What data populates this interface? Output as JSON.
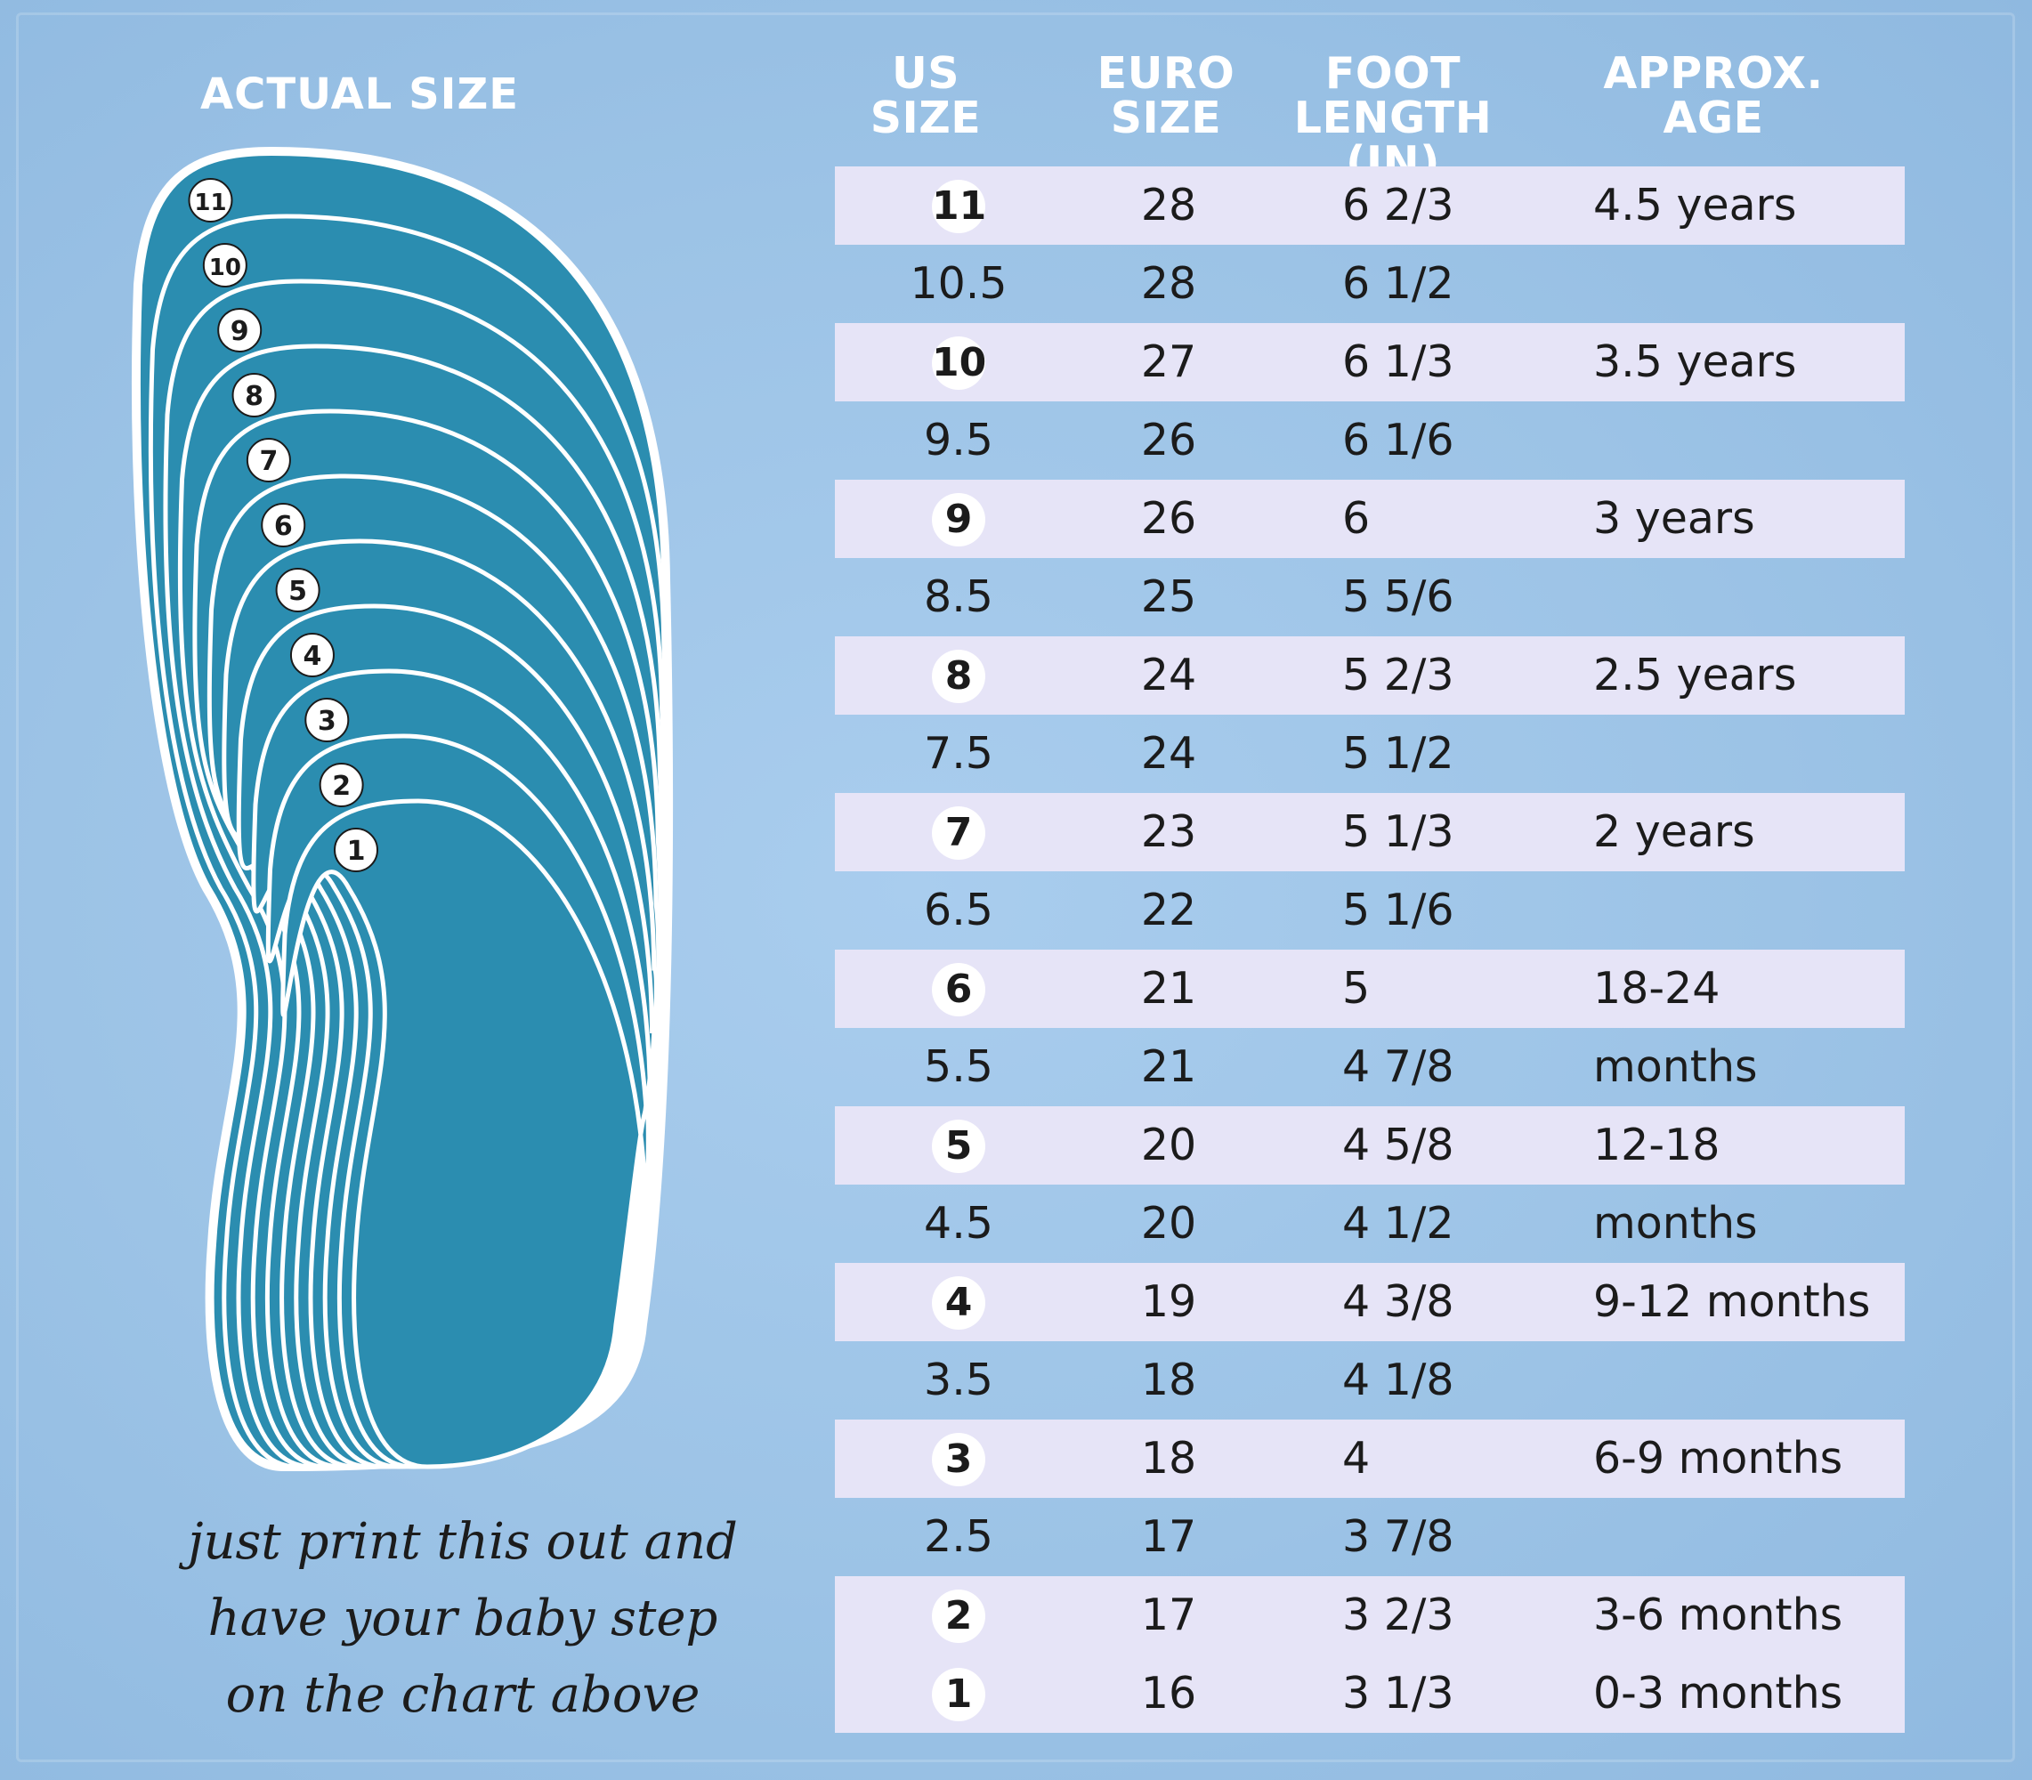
{
  "left_panel": {
    "actual_size_label": "ACTUAL SIZE",
    "foot_outline_numbers": [
      "11",
      "10",
      "9",
      "8",
      "7",
      "6",
      "5",
      "4",
      "3",
      "2",
      "1"
    ],
    "caption_lines": [
      "just print this out and",
      "have your baby step",
      "on the chart above"
    ]
  },
  "table": {
    "headers": {
      "us_size": [
        "US",
        "SIZE"
      ],
      "euro_size": [
        "EURO",
        "SIZE"
      ],
      "foot_length": [
        "FOOT",
        "LENGTH (IN)"
      ],
      "approx_age": [
        "APPROX.",
        "AGE"
      ]
    },
    "rows": [
      {
        "us": "11",
        "euro": "28",
        "foot": "6 2/3",
        "age": "4.5 years",
        "whole": true
      },
      {
        "us": "10.5",
        "euro": "28",
        "foot": "6 1/2",
        "age": "",
        "whole": false
      },
      {
        "us": "10",
        "euro": "27",
        "foot": "6 1/3",
        "age": "3.5 years",
        "whole": true
      },
      {
        "us": "9.5",
        "euro": "26",
        "foot": "6 1/6",
        "age": "",
        "whole": false
      },
      {
        "us": "9",
        "euro": "26",
        "foot": "6",
        "age": "3 years",
        "whole": true
      },
      {
        "us": "8.5",
        "euro": "25",
        "foot": "5 5/6",
        "age": "",
        "whole": false
      },
      {
        "us": "8",
        "euro": "24",
        "foot": "5 2/3",
        "age": "2.5 years",
        "whole": true
      },
      {
        "us": "7.5",
        "euro": "24",
        "foot": "5 1/2",
        "age": "",
        "whole": false
      },
      {
        "us": "7",
        "euro": "23",
        "foot": "5 1/3",
        "age": "2 years",
        "whole": true
      },
      {
        "us": "6.5",
        "euro": "22",
        "foot": "5 1/6",
        "age": "",
        "whole": false
      },
      {
        "us": "6",
        "euro": "21",
        "foot": "5",
        "age": "18-24 months",
        "whole": true
      },
      {
        "us": "5.5",
        "euro": "21",
        "foot": "4 7/8",
        "age": "",
        "whole": false
      },
      {
        "us": "5",
        "euro": "20",
        "foot": "4 5/8",
        "age": "12-18 months",
        "whole": true
      },
      {
        "us": "4.5",
        "euro": "20",
        "foot": "4 1/2",
        "age": "",
        "whole": false
      },
      {
        "us": "4",
        "euro": "19",
        "foot": "4 3/8",
        "age": "9-12 months",
        "whole": true
      },
      {
        "us": "3.5",
        "euro": "18",
        "foot": "4 1/8",
        "age": "",
        "whole": false
      },
      {
        "us": "3",
        "euro": "18",
        "foot": "4",
        "age": "6-9 months",
        "whole": true
      },
      {
        "us": "2.5",
        "euro": "17",
        "foot": "3 7/8",
        "age": "",
        "whole": false
      },
      {
        "us": "2",
        "euro": "17",
        "foot": "3 2/3",
        "age": "3-6 months",
        "whole": true
      },
      {
        "us": "1",
        "euro": "16",
        "foot": "3 1/3",
        "age": "0-3 months",
        "whole": true
      }
    ]
  },
  "colors": {
    "background": "#9cc3e6",
    "row_shade": "#e6e4f7",
    "foot_fill": "#2b8db0",
    "outline": "#ffffff"
  }
}
